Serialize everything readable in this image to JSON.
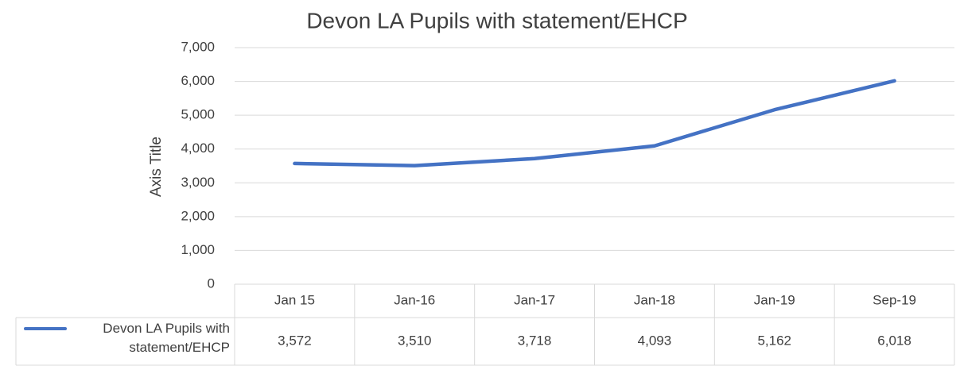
{
  "chart_data": {
    "type": "line",
    "title": "Devon LA Pupils with statement/EHCP",
    "y_label": "Axis Title",
    "categories": [
      "Jan 15",
      "Jan-16",
      "Jan-17",
      "Jan-18",
      "Jan-19",
      "Sep-19"
    ],
    "series": [
      {
        "name": "Devon LA Pupils with statement/EHCP",
        "color": "#4472c4",
        "values": [
          3572,
          3510,
          3718,
          4093,
          5162,
          6018
        ],
        "value_labels": [
          "3,572",
          "3,510",
          "3,718",
          "4,093",
          "5,162",
          "6,018"
        ]
      }
    ],
    "ylim": [
      0,
      7000
    ],
    "yticks": [
      0,
      {
        "value": 1000,
        "label": "1,000"
      },
      {
        "value": 2000,
        "label": "2,000"
      },
      {
        "value": 3000,
        "label": "3,000"
      },
      {
        "value": 4000,
        "label": "4,000"
      },
      {
        "value": 5000,
        "label": "5,000"
      },
      {
        "value": 6000,
        "label": "6,000"
      },
      {
        "value": 7000,
        "label": "7,000"
      }
    ],
    "grid": true,
    "data_table": true
  }
}
